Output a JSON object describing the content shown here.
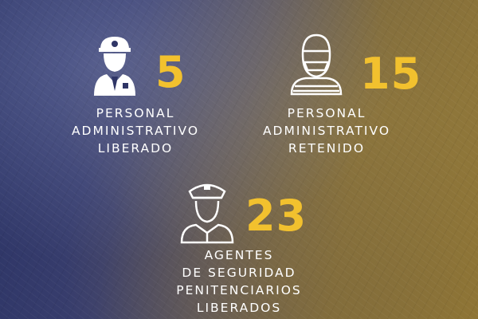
{
  "stats": [
    {
      "value": "5",
      "label_lines": [
        "PERSONAL",
        "ADMINISTRATIVO",
        "LIBERADO"
      ]
    },
    {
      "value": "15",
      "label_lines": [
        "PERSONAL",
        "ADMINISTRATIVO",
        "RETENIDO"
      ]
    },
    {
      "value": "23",
      "label_lines": [
        "AGENTES",
        "DE SEGURIDAD",
        "PENITENCIARIOS",
        "LIBERADOS"
      ]
    }
  ],
  "colors": {
    "accent": "#f2c12e",
    "text": "#ffffff",
    "bg_left": "#2c3466",
    "bg_right": "#8f7535"
  },
  "icons": [
    "police-officer-icon",
    "masked-person-icon",
    "guard-officer-icon"
  ]
}
